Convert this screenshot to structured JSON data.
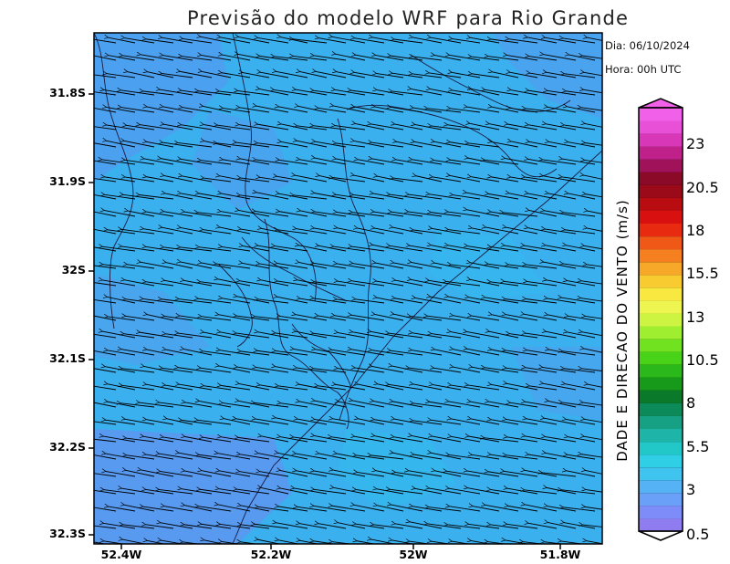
{
  "title": "Previsão do modelo WRF para Rio Grande",
  "date_label": "Dia: 06/10/2024",
  "hour_label": "Hora: 00h UTC",
  "colorbar": {
    "title": "DADE E DIRECAO DO VENTO (m/s)",
    "tick_labels": [
      "23",
      "20.5",
      "18",
      "15.5",
      "13",
      "10.5",
      "8",
      "5.5",
      "3",
      "0.5"
    ],
    "min": 0.5,
    "max": 25,
    "colors": [
      "#8f7cf0",
      "#7d8cf8",
      "#6aa0f8",
      "#55b2f5",
      "#3fc4ef",
      "#2fd0e6",
      "#22c8c8",
      "#1eb4a8",
      "#16a084",
      "#0d8a5a",
      "#0a7a2a",
      "#17991a",
      "#2ab81a",
      "#48d218",
      "#70e220",
      "#a0ee30",
      "#ccf440",
      "#eef450",
      "#f8e840",
      "#f8cc30",
      "#f8a828",
      "#f68020",
      "#f05818",
      "#e82a10",
      "#d81010",
      "#b80c10",
      "#9a0a18",
      "#8a0a28",
      "#a0125a",
      "#c0208a",
      "#d838b8",
      "#e850d8",
      "#f060e8"
    ]
  },
  "map": {
    "background": "#3da6f0",
    "lat_labels": [
      "31.8S",
      "31.9S",
      "32S",
      "32.1S",
      "32.2S",
      "32.3S"
    ],
    "lon_labels": [
      "52.4W",
      "52.2W",
      "52W",
      "51.8W"
    ],
    "lat_values": [
      -31.8,
      -31.9,
      -32.0,
      -32.1,
      -32.2,
      -32.3
    ],
    "lon_values": [
      -52.4,
      -52.2,
      -52.0,
      -51.8
    ],
    "wind_direction": "from east-southeast",
    "wind_speed_ms": 2.5
  }
}
